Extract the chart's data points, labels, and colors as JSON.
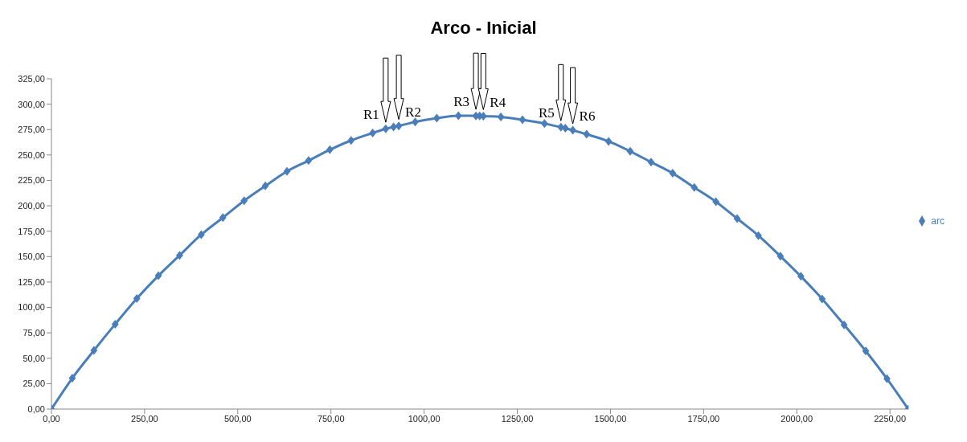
{
  "chart_data": {
    "type": "line",
    "title": "Arco - Inicial",
    "xlim": [
      0,
      2300
    ],
    "ylim": [
      0,
      325
    ],
    "xticks": [
      {
        "value": 0,
        "label": "0,00"
      },
      {
        "value": 250,
        "label": "250,00"
      },
      {
        "value": 500,
        "label": "500,00"
      },
      {
        "value": 750,
        "label": "750,00"
      },
      {
        "value": 1000,
        "label": "1000,00"
      },
      {
        "value": 1250,
        "label": "1250,00"
      },
      {
        "value": 1500,
        "label": "1500,00"
      },
      {
        "value": 1750,
        "label": "1750,00"
      },
      {
        "value": 2000,
        "label": "2000,00"
      },
      {
        "value": 2250,
        "label": "2250,00"
      }
    ],
    "yticks": [
      {
        "value": 0,
        "label": "0,00"
      },
      {
        "value": 25,
        "label": "25,00"
      },
      {
        "value": 50,
        "label": "50,00"
      },
      {
        "value": 75,
        "label": "75,00"
      },
      {
        "value": 100,
        "label": "100,00"
      },
      {
        "value": 125,
        "label": "125,00"
      },
      {
        "value": 150,
        "label": "150,00"
      },
      {
        "value": 175,
        "label": "175,00"
      },
      {
        "value": 200,
        "label": "200,00"
      },
      {
        "value": 225,
        "label": "225,00"
      },
      {
        "value": 250,
        "label": "250,00"
      },
      {
        "value": 275,
        "label": "275,00"
      },
      {
        "value": 300,
        "label": "300,00"
      },
      {
        "value": 325,
        "label": "325,00"
      }
    ],
    "x": [
      0,
      56,
      114,
      171,
      229,
      287,
      344,
      402,
      460,
      517,
      574,
      632,
      690,
      747,
      804,
      862,
      897,
      918,
      932,
      976,
      1034,
      1092,
      1139,
      1149,
      1159,
      1206,
      1264,
      1323,
      1367,
      1379,
      1399,
      1436,
      1495,
      1553,
      1609,
      1667,
      1725,
      1783,
      1840,
      1897,
      1956,
      2011,
      2068,
      2127,
      2185,
      2242,
      2299
    ],
    "series": [
      {
        "name": "arc",
        "color": "#4a7ebb",
        "values": [
          0,
          30.4,
          57.7,
          83.5,
          108.7,
          131.2,
          151.3,
          171.6,
          188.3,
          205,
          219.6,
          233.9,
          244.5,
          255.2,
          264.3,
          271.6,
          275.8,
          277.6,
          278.6,
          282.5,
          286.2,
          288.6,
          288.5,
          288.4,
          288.2,
          287.5,
          284.6,
          281,
          277.3,
          276.4,
          274.3,
          270.4,
          263.4,
          253.6,
          243,
          232,
          218,
          204,
          187.4,
          170.7,
          150.4,
          130.6,
          108.4,
          82.9,
          57.1,
          29.8,
          0
        ]
      }
    ],
    "marker": "diamond",
    "grid": false,
    "legend": "right",
    "annotations": [
      {
        "text": "R1",
        "x": 897,
        "y": 275.8
      },
      {
        "text": "R2",
        "x": 932,
        "y": 278.6
      },
      {
        "text": "R3",
        "x": 1139,
        "y": 288.5
      },
      {
        "text": "R4",
        "x": 1159,
        "y": 288.2
      },
      {
        "text": "R5",
        "x": 1367,
        "y": 277.3
      },
      {
        "text": "R6",
        "x": 1399,
        "y": 274.3
      }
    ]
  }
}
